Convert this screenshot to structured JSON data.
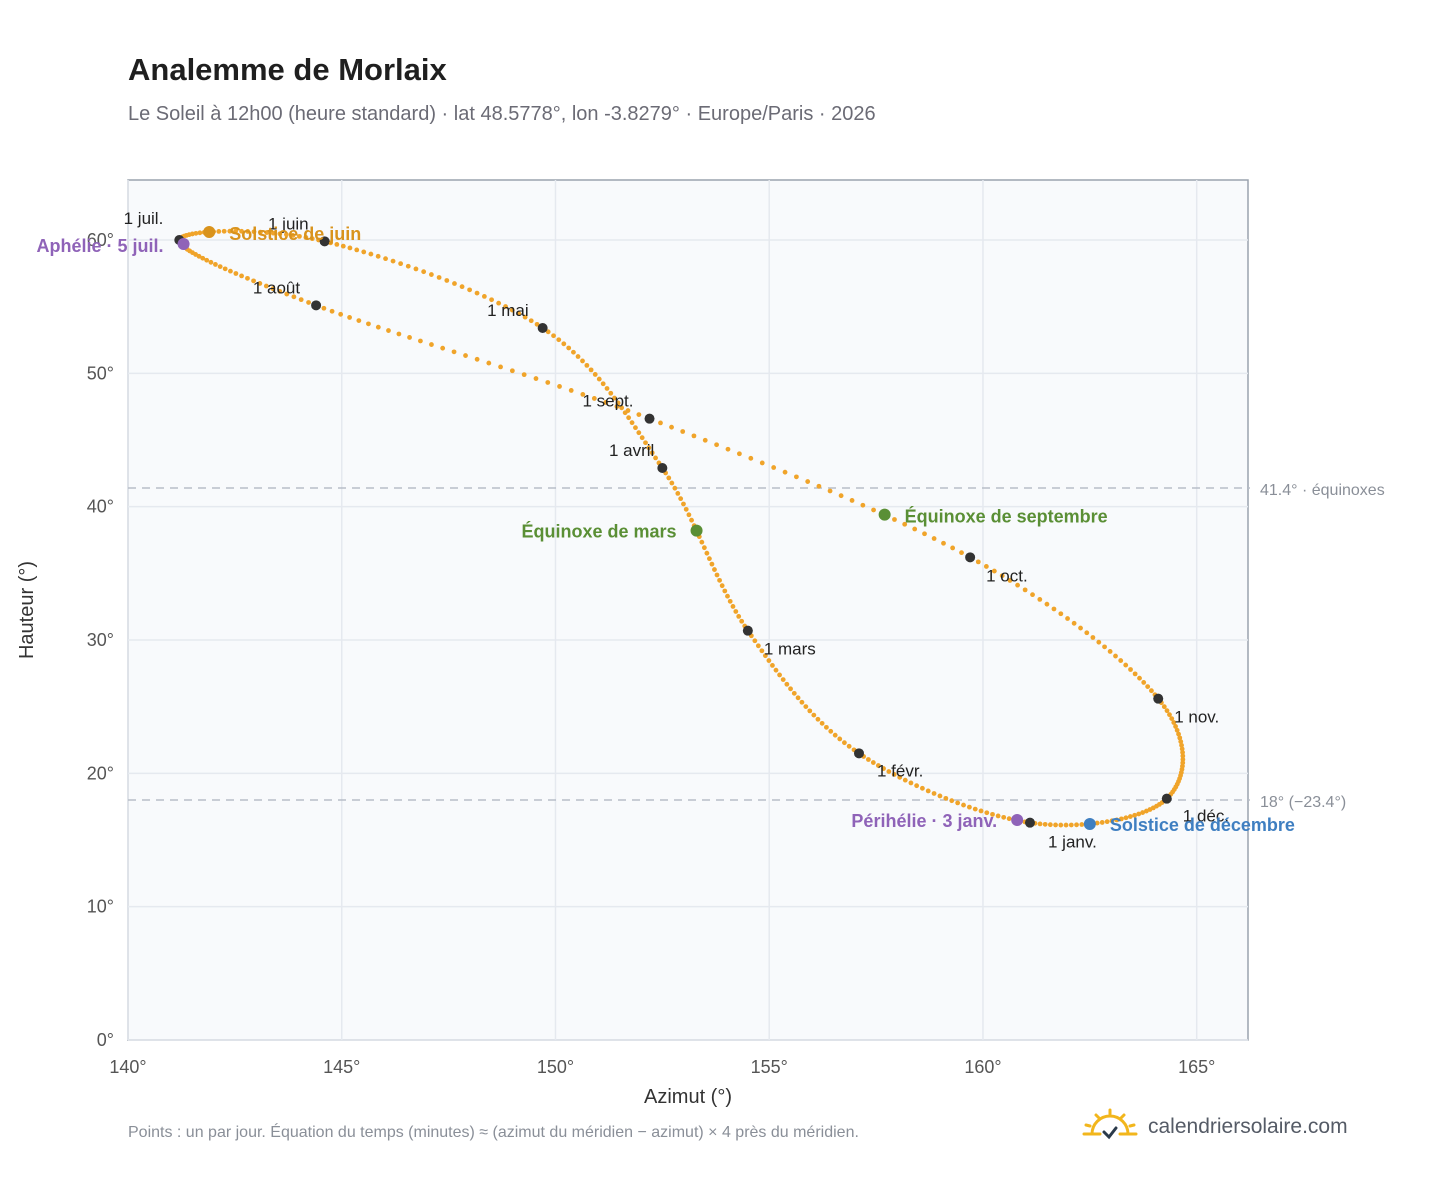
{
  "title": "Analemme de Morlaix",
  "subtitle": "Le Soleil à 12h00 (heure standard) · lat 48.5778°, lon -3.8279° · Europe/Paris · 2026",
  "footnote": "Points : un par jour. Équation du temps (minutes) ≈ (azimut du méridien − azimut) × 4 près du méridien.",
  "brand": {
    "name": "calendriersolaire.com",
    "icon": "sun-logo-icon"
  },
  "colors": {
    "curve": "#f0a42a",
    "month_dot": "#333333",
    "solstice_june": "#d9931c",
    "solstice_dec": "#3f7fc1",
    "equinox": "#5a8f35",
    "apsis": "#8f63b8",
    "grid": "#e5e9ef",
    "reference": "#b7bec8",
    "plot_bg": "#f8fafc"
  },
  "chart_data": {
    "type": "scatter",
    "xlabel": "Azimut (°)",
    "ylabel": "Hauteur (°)",
    "xlim": [
      140,
      166.2
    ],
    "ylim": [
      0,
      64.5
    ],
    "xticks": [
      140,
      145,
      150,
      155,
      160,
      165
    ],
    "yticks": [
      0,
      10,
      20,
      30,
      40,
      50,
      60
    ],
    "xtick_labels": [
      "140°",
      "145°",
      "150°",
      "155°",
      "160°",
      "165°"
    ],
    "ytick_labels": [
      "0°",
      "10°",
      "20°",
      "30°",
      "40°",
      "50°",
      "60°"
    ],
    "grid": true,
    "series": [
      {
        "note": "daily sun position at 12h00",
        "points_per": "day",
        "months": [
          {
            "label": "1 janv.",
            "az": 161.1,
            "alt": 16.3
          },
          {
            "label": "1 févr.",
            "az": 157.1,
            "alt": 21.5
          },
          {
            "label": "1 mars",
            "az": 154.5,
            "alt": 30.7
          },
          {
            "label": "1 avril",
            "az": 152.5,
            "alt": 42.9
          },
          {
            "label": "1 mai",
            "az": 149.7,
            "alt": 53.4
          },
          {
            "label": "1 juin",
            "az": 144.6,
            "alt": 59.9
          },
          {
            "label": "1 juil.",
            "az": 141.2,
            "alt": 60.0
          },
          {
            "label": "1 août",
            "az": 144.4,
            "alt": 55.1
          },
          {
            "label": "1 sept.",
            "az": 152.2,
            "alt": 46.6
          },
          {
            "label": "1 oct.",
            "az": 159.7,
            "alt": 36.2
          },
          {
            "label": "1 nov.",
            "az": 164.1,
            "alt": 25.6
          },
          {
            "label": "1 déc.",
            "az": 164.3,
            "alt": 18.1
          },
          {
            "label": "1 janv.",
            "az": 161.1,
            "alt": 16.3
          }
        ]
      }
    ],
    "events": [
      {
        "label": "Solstice de juin",
        "az": 141.9,
        "alt": 60.6,
        "color": "#d9931c"
      },
      {
        "label": "Aphélie · 5 juil.",
        "az": 141.3,
        "alt": 59.7,
        "color": "#8f63b8"
      },
      {
        "label": "Équinoxe de mars",
        "az": 153.3,
        "alt": 38.2,
        "color": "#5a8f35"
      },
      {
        "label": "Équinoxe de septembre",
        "az": 157.7,
        "alt": 39.4,
        "color": "#5a8f35"
      },
      {
        "label": "Périhélie · 3 janv.",
        "az": 160.8,
        "alt": 16.5,
        "color": "#8f63b8"
      },
      {
        "label": "Solstice de décembre",
        "az": 162.5,
        "alt": 16.2,
        "color": "#3f7fc1"
      }
    ],
    "reference_lines": [
      {
        "value": 41.4,
        "label": "41.4° · équinoxes"
      },
      {
        "value": 18.0,
        "label": "18° (−23.4°)"
      }
    ]
  }
}
